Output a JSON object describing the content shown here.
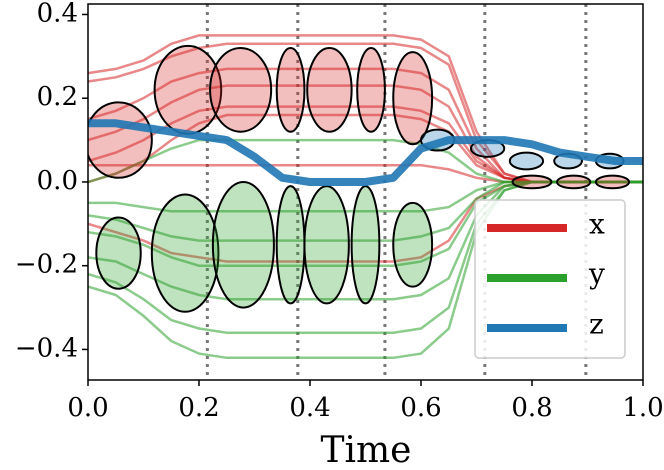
{
  "chart_data": {
    "type": "line",
    "xlabel": "Time",
    "x": [
      0,
      0.05,
      0.1,
      0.15,
      0.2,
      0.25,
      0.3,
      0.35,
      0.4,
      0.45,
      0.5,
      0.55,
      0.6,
      0.65,
      0.7,
      0.75,
      0.8,
      0.85,
      0.9,
      0.95,
      1.0
    ],
    "series": [
      {
        "name": "x",
        "color": "#d62728",
        "trajectories": [
          [
            0.26,
            0.27,
            0.29,
            0.33,
            0.35,
            0.35,
            0.35,
            0.35,
            0.35,
            0.35,
            0.35,
            0.35,
            0.34,
            0.3,
            0.12,
            0.02,
            0,
            0,
            0,
            0,
            0
          ],
          [
            0.24,
            0.25,
            0.27,
            0.3,
            0.32,
            0.33,
            0.33,
            0.33,
            0.33,
            0.33,
            0.33,
            0.33,
            0.32,
            0.28,
            0.1,
            0.02,
            0,
            0,
            0,
            0,
            0
          ],
          [
            0.15,
            0.17,
            0.2,
            0.24,
            0.26,
            0.27,
            0.27,
            0.27,
            0.27,
            0.27,
            0.27,
            0.27,
            0.26,
            0.22,
            0.08,
            0.01,
            0,
            0,
            0,
            0,
            0
          ],
          [
            0.1,
            0.12,
            0.15,
            0.19,
            0.22,
            0.23,
            0.23,
            0.23,
            0.23,
            0.23,
            0.23,
            0.23,
            0.22,
            0.18,
            0.06,
            0.01,
            0,
            0,
            0,
            0,
            0
          ],
          [
            0.05,
            0.07,
            0.1,
            0.14,
            0.17,
            0.18,
            0.18,
            0.18,
            0.18,
            0.18,
            0.18,
            0.18,
            0.17,
            0.14,
            0.05,
            0.01,
            0,
            0,
            0,
            0,
            0
          ],
          [
            0.0,
            0.02,
            0.05,
            0.1,
            0.14,
            0.16,
            0.16,
            0.16,
            0.16,
            0.16,
            0.16,
            0.16,
            0.15,
            0.12,
            0.04,
            0.01,
            0,
            0,
            0,
            0,
            0
          ],
          [
            0.04,
            0.04,
            0.04,
            0.04,
            0.04,
            0.04,
            0.04,
            0.04,
            0.04,
            0.04,
            0.04,
            0.04,
            0.04,
            0.03,
            0.01,
            0,
            0,
            0,
            0,
            0,
            0
          ],
          [
            -0.1,
            -0.12,
            -0.14,
            -0.17,
            -0.18,
            -0.19,
            -0.19,
            -0.19,
            -0.19,
            -0.19,
            -0.19,
            -0.19,
            -0.18,
            -0.14,
            -0.04,
            -0.01,
            0,
            0,
            0,
            0,
            0
          ]
        ]
      },
      {
        "name": "y",
        "color": "#2ca02c",
        "trajectories": [
          [
            -0.25,
            -0.27,
            -0.32,
            -0.38,
            -0.41,
            -0.42,
            -0.42,
            -0.42,
            -0.42,
            -0.42,
            -0.42,
            -0.42,
            -0.41,
            -0.35,
            -0.12,
            -0.02,
            0,
            0,
            0,
            0,
            0
          ],
          [
            -0.22,
            -0.24,
            -0.28,
            -0.33,
            -0.35,
            -0.36,
            -0.36,
            -0.36,
            -0.36,
            -0.36,
            -0.36,
            -0.36,
            -0.35,
            -0.3,
            -0.1,
            -0.02,
            0,
            0,
            0,
            0,
            0
          ],
          [
            -0.18,
            -0.19,
            -0.22,
            -0.25,
            -0.27,
            -0.28,
            -0.28,
            -0.28,
            -0.28,
            -0.28,
            -0.28,
            -0.28,
            -0.27,
            -0.23,
            -0.08,
            -0.01,
            0,
            0,
            0,
            0,
            0
          ],
          [
            -0.12,
            -0.13,
            -0.15,
            -0.18,
            -0.2,
            -0.2,
            -0.2,
            -0.2,
            -0.2,
            -0.2,
            -0.2,
            -0.2,
            -0.19,
            -0.16,
            -0.05,
            -0.01,
            0,
            0,
            0,
            0,
            0
          ],
          [
            -0.08,
            -0.09,
            -0.11,
            -0.13,
            -0.14,
            -0.14,
            -0.14,
            -0.14,
            -0.14,
            -0.14,
            -0.14,
            -0.14,
            -0.13,
            -0.11,
            -0.04,
            0,
            0,
            0,
            0,
            0,
            0
          ],
          [
            -0.05,
            -0.05,
            -0.06,
            -0.07,
            -0.07,
            -0.07,
            -0.07,
            -0.07,
            -0.07,
            -0.07,
            -0.07,
            -0.07,
            -0.07,
            -0.06,
            -0.02,
            0,
            0,
            0,
            0,
            0,
            0
          ],
          [
            0.0,
            0.02,
            0.05,
            0.08,
            0.1,
            0.1,
            0.1,
            0.1,
            0.1,
            0.1,
            0.1,
            0.1,
            0.09,
            0.07,
            0.02,
            0,
            0,
            0,
            0,
            0,
            0
          ]
        ]
      },
      {
        "name": "z",
        "color": "#1f77b4",
        "values": [
          0.14,
          0.14,
          0.13,
          0.12,
          0.11,
          0.1,
          0.06,
          0.01,
          0,
          0,
          0,
          0.01,
          0.08,
          0.1,
          0.1,
          0.1,
          0.09,
          0.07,
          0.06,
          0.05,
          0.05
        ]
      }
    ],
    "ellipses": [
      {
        "x": 0.055,
        "y": 0.1,
        "width": 0.12,
        "height": 0.18,
        "series": 0
      },
      {
        "x": 0.18,
        "y": 0.22,
        "width": 0.12,
        "height": 0.21,
        "series": 0
      },
      {
        "x": 0.275,
        "y": 0.22,
        "width": 0.11,
        "height": 0.2,
        "series": 0
      },
      {
        "x": 0.365,
        "y": 0.22,
        "width": 0.05,
        "height": 0.2,
        "series": 0
      },
      {
        "x": 0.435,
        "y": 0.22,
        "width": 0.08,
        "height": 0.2,
        "series": 0
      },
      {
        "x": 0.51,
        "y": 0.22,
        "width": 0.05,
        "height": 0.2,
        "series": 0
      },
      {
        "x": 0.585,
        "y": 0.2,
        "width": 0.07,
        "height": 0.22,
        "series": 0
      },
      {
        "x": 0.8,
        "y": 0.0,
        "width": 0.07,
        "height": 0.03,
        "series": 0
      },
      {
        "x": 0.875,
        "y": 0.0,
        "width": 0.06,
        "height": 0.03,
        "series": 0
      },
      {
        "x": 0.945,
        "y": 0.0,
        "width": 0.06,
        "height": 0.03,
        "series": 0
      },
      {
        "x": 0.055,
        "y": -0.17,
        "width": 0.08,
        "height": 0.17,
        "series": 1
      },
      {
        "x": 0.175,
        "y": -0.17,
        "width": 0.12,
        "height": 0.28,
        "series": 1
      },
      {
        "x": 0.28,
        "y": -0.15,
        "width": 0.11,
        "height": 0.3,
        "series": 1
      },
      {
        "x": 0.365,
        "y": -0.15,
        "width": 0.05,
        "height": 0.28,
        "series": 1
      },
      {
        "x": 0.43,
        "y": -0.15,
        "width": 0.08,
        "height": 0.28,
        "series": 1
      },
      {
        "x": 0.5,
        "y": -0.15,
        "width": 0.05,
        "height": 0.28,
        "series": 1
      },
      {
        "x": 0.585,
        "y": -0.15,
        "width": 0.07,
        "height": 0.2,
        "series": 1
      },
      {
        "x": 0.63,
        "y": 0.1,
        "width": 0.06,
        "height": 0.05,
        "series": 2
      },
      {
        "x": 0.72,
        "y": 0.08,
        "width": 0.06,
        "height": 0.04,
        "series": 2
      },
      {
        "x": 0.79,
        "y": 0.05,
        "width": 0.06,
        "height": 0.04,
        "series": 2
      },
      {
        "x": 0.865,
        "y": 0.05,
        "width": 0.05,
        "height": 0.035,
        "series": 2
      },
      {
        "x": 0.94,
        "y": 0.05,
        "width": 0.05,
        "height": 0.035,
        "series": 2
      }
    ],
    "vlines": [
      0.215,
      0.378,
      0.535,
      0.715,
      0.897
    ],
    "xlim": [
      0,
      1.0
    ],
    "xticks": [
      {
        "value": 0,
        "label": "0.0"
      },
      {
        "value": 0.2,
        "label": "0.2"
      },
      {
        "value": 0.4,
        "label": "0.4"
      },
      {
        "value": 0.6,
        "label": "0.6"
      },
      {
        "value": 0.8,
        "label": "0.8"
      },
      {
        "value": 1.0,
        "label": "1.0"
      }
    ],
    "ylim": [
      -0.473,
      0.425
    ],
    "yticks": [
      {
        "value": -0.4,
        "label": "−0.4"
      },
      {
        "value": -0.2,
        "label": "−0.2"
      },
      {
        "value": 0,
        "label": "0.0"
      },
      {
        "value": 0.2,
        "label": "0.2"
      },
      {
        "value": 0.4,
        "label": "0.4"
      }
    ],
    "legend": "lower right"
  }
}
